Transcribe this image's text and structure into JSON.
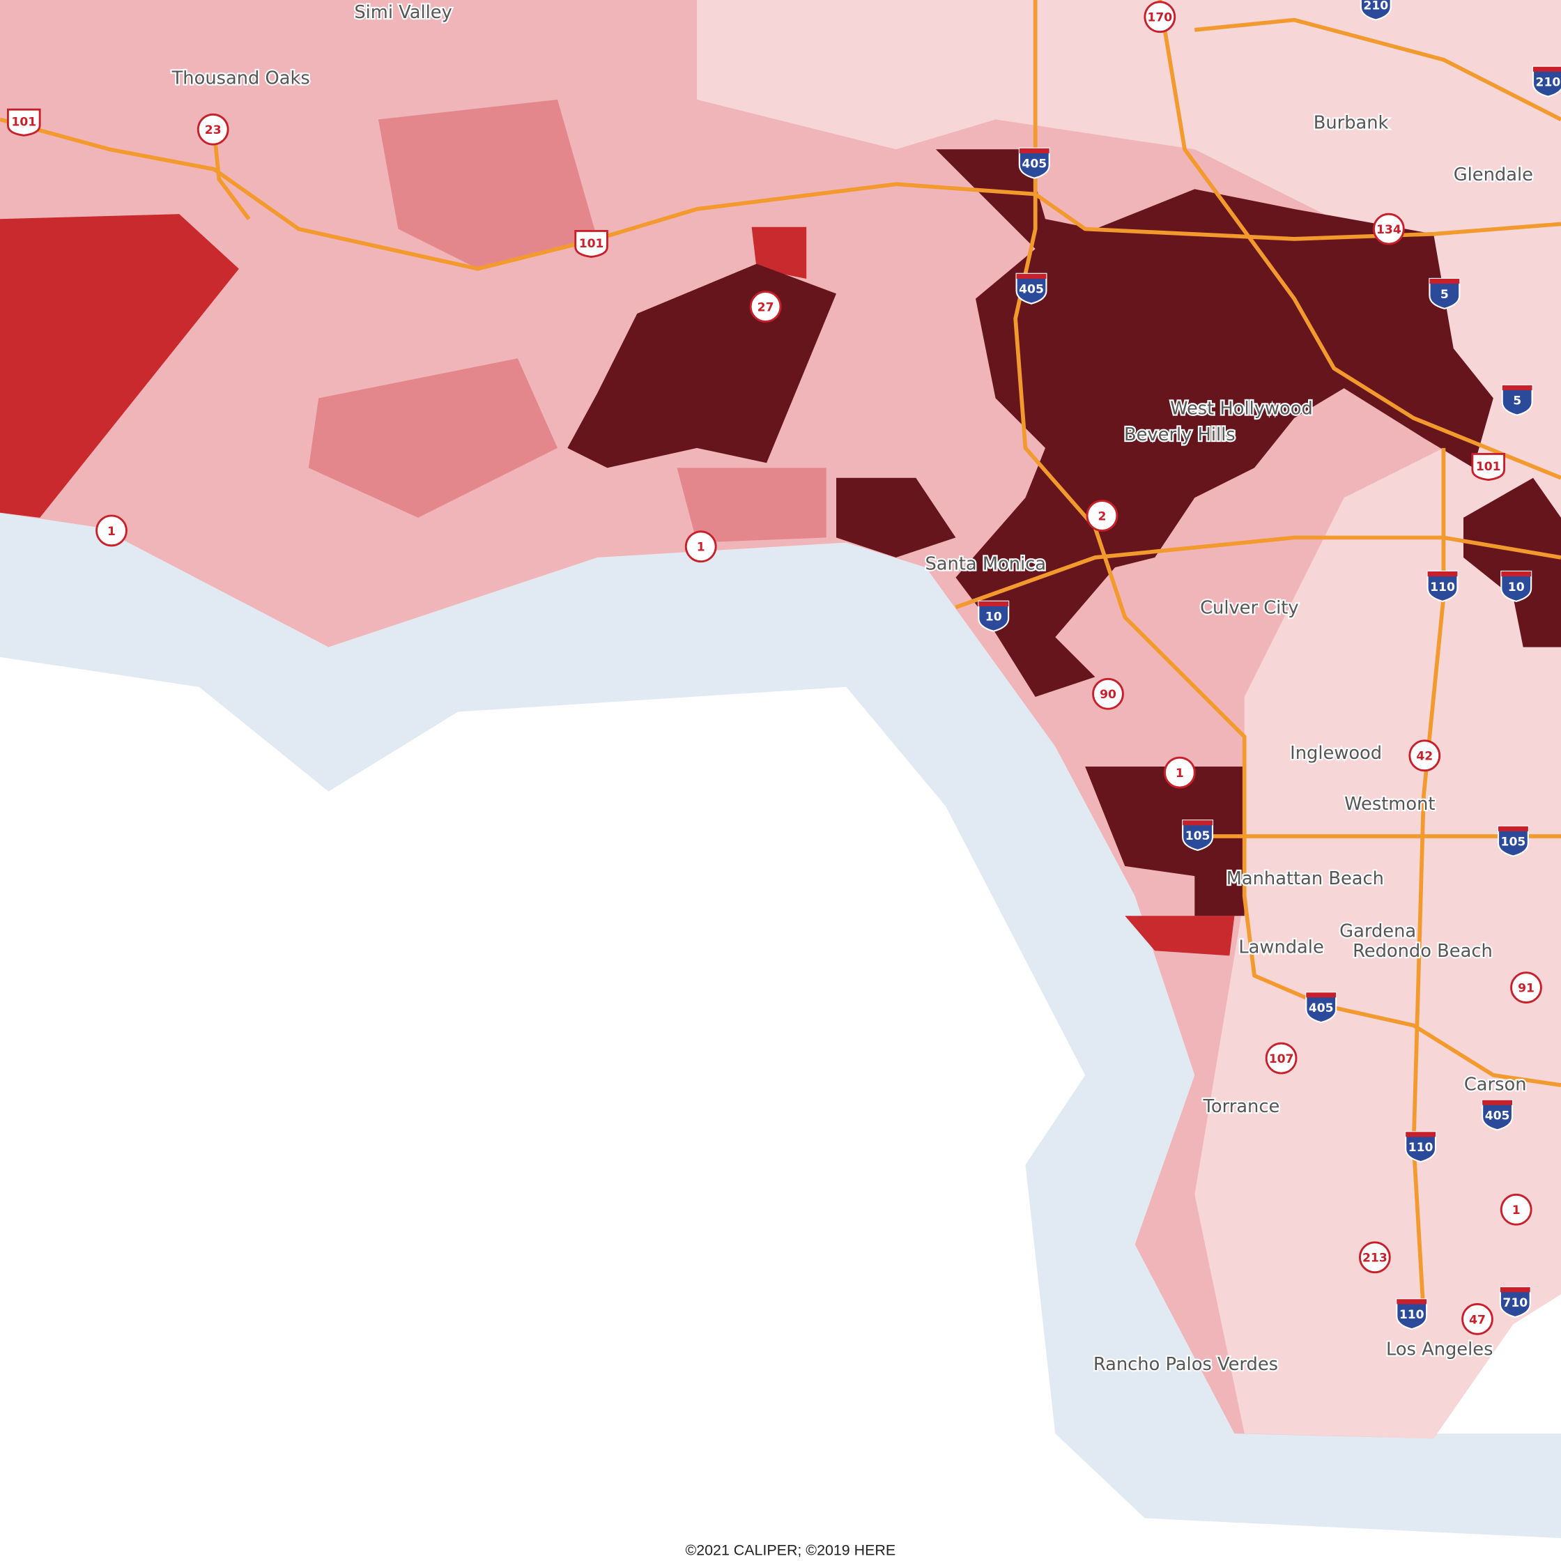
{
  "places": [
    {
      "label": "Simi Valley"
    },
    {
      "label": "Thousand Oaks"
    },
    {
      "label": "Burbank"
    },
    {
      "label": "Glendale"
    },
    {
      "label": "West Hollywood"
    },
    {
      "label": "Beverly Hills"
    },
    {
      "label": "Santa Monica"
    },
    {
      "label": "Culver City"
    },
    {
      "label": "Inglewood"
    },
    {
      "label": "Westmont"
    },
    {
      "label": "Manhattan Beach"
    },
    {
      "label": "Gardena"
    },
    {
      "label": "Redondo Beach"
    },
    {
      "label": "Lawndale"
    },
    {
      "label": "Carson"
    },
    {
      "label": "Torrance"
    },
    {
      "label": "Rancho Palos Verdes"
    },
    {
      "label": "Los Angeles"
    }
  ],
  "interstates": [
    {
      "label": "405"
    },
    {
      "label": "405"
    },
    {
      "label": "5"
    },
    {
      "label": "5"
    },
    {
      "label": "10"
    },
    {
      "label": "110"
    },
    {
      "label": "10"
    },
    {
      "label": "105"
    },
    {
      "label": "105"
    },
    {
      "label": "405"
    },
    {
      "label": "405"
    },
    {
      "label": "110"
    },
    {
      "label": "110"
    },
    {
      "label": "710"
    },
    {
      "label": "210"
    },
    {
      "label": "210"
    }
  ],
  "us_routes": [
    {
      "label": "101"
    },
    {
      "label": "101"
    },
    {
      "label": "101"
    }
  ],
  "state_routes": [
    {
      "label": "170"
    },
    {
      "label": "23"
    },
    {
      "label": "27"
    },
    {
      "label": "134"
    },
    {
      "label": "1"
    },
    {
      "label": "1"
    },
    {
      "label": "2"
    },
    {
      "label": "90"
    },
    {
      "label": "1"
    },
    {
      "label": "42"
    },
    {
      "label": "91"
    },
    {
      "label": "107"
    },
    {
      "label": "213"
    },
    {
      "label": "1"
    },
    {
      "label": "47"
    }
  ],
  "credit": "©2021 CALIPER; ©2019 HERE"
}
